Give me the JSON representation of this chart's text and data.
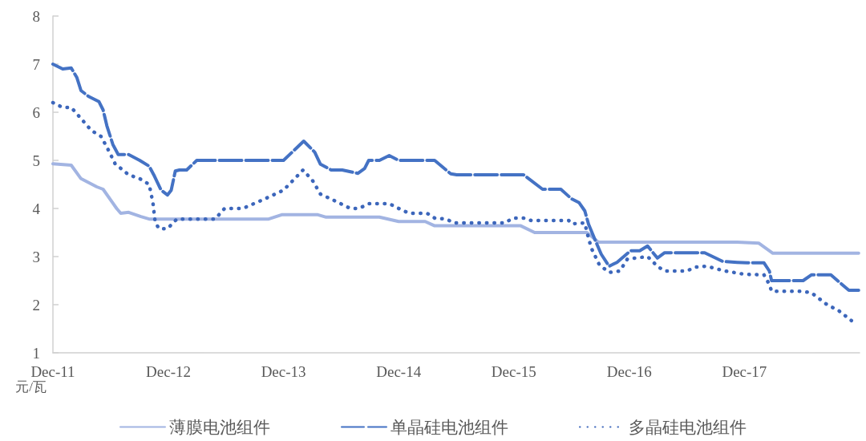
{
  "chart_data": {
    "type": "line",
    "ylabel": "元/瓦",
    "ylim": [
      1,
      8
    ],
    "yticks": [
      1,
      2,
      3,
      4,
      5,
      6,
      7,
      8
    ],
    "xlim": [
      "2011-12-01",
      "2018-12-01"
    ],
    "xticks": [
      {
        "value": "2011-12",
        "label": "Dec-11"
      },
      {
        "value": "2012-12",
        "label": "Dec-12"
      },
      {
        "value": "2013-12",
        "label": "Dec-13"
      },
      {
        "value": "2014-12",
        "label": "Dec-14"
      },
      {
        "value": "2015-12",
        "label": "Dec-15"
      },
      {
        "value": "2016-12",
        "label": "Dec-16"
      },
      {
        "value": "2017-12",
        "label": "Dec-17"
      }
    ],
    "grid": false,
    "legend": "bottom",
    "marker": "none",
    "series": [
      {
        "name": "薄膜电池组件",
        "color": "#a2b4e2",
        "line_style": "solid",
        "x": [
          "2011-12-01",
          "2012-01-28",
          "2012-02-28",
          "2012-04-18",
          "2012-05-08",
          "2012-06-20",
          "2012-07-03",
          "2012-07-28",
          "2012-09-05",
          "2012-10-01",
          "2013-10-15",
          "2013-11-25",
          "2014-03-20",
          "2014-04-15",
          "2014-10-01",
          "2014-12-01",
          "2015-02-23",
          "2015-03-25",
          "2015-12-23",
          "2016-02-05",
          "2016-07-20",
          "2016-08-25",
          "2017-11-08",
          "2018-01-15",
          "2018-03-01",
          "2018-11-28"
        ],
        "values": [
          4.93,
          4.9,
          4.62,
          4.45,
          4.4,
          4.0,
          3.9,
          3.92,
          3.83,
          3.78,
          3.78,
          3.87,
          3.87,
          3.82,
          3.82,
          3.73,
          3.73,
          3.64,
          3.64,
          3.5,
          3.5,
          3.3,
          3.3,
          3.28,
          3.07,
          3.07
        ]
      },
      {
        "name": "单晶硅电池组件",
        "color": "#4472c4",
        "line_style": "dashed",
        "x": [
          "2011-12-01",
          "2012-01-01",
          "2012-01-28",
          "2012-02-15",
          "2012-02-28",
          "2012-03-23",
          "2012-04-25",
          "2012-05-08",
          "2012-05-20",
          "2012-06-08",
          "2012-06-25",
          "2012-07-28",
          "2012-09-01",
          "2012-10-01",
          "2012-10-18",
          "2012-11-08",
          "2012-11-28",
          "2012-12-10",
          "2012-12-23",
          "2013-01-05",
          "2013-01-28",
          "2013-03-01",
          "2013-12-01",
          "2014-02-03",
          "2014-03-10",
          "2014-03-28",
          "2014-05-01",
          "2014-06-05",
          "2014-07-25",
          "2014-08-15",
          "2014-08-28",
          "2014-10-01",
          "2014-11-01",
          "2014-12-01",
          "2015-03-25",
          "2015-05-15",
          "2015-06-03",
          "2016-01-01",
          "2016-03-01",
          "2016-04-28",
          "2016-06-01",
          "2016-06-25",
          "2016-07-13",
          "2016-07-25",
          "2016-08-13",
          "2016-09-03",
          "2016-09-28",
          "2016-10-23",
          "2016-12-05",
          "2017-01-03",
          "2017-01-28",
          "2017-02-28",
          "2017-03-23",
          "2017-07-28",
          "2017-09-23",
          "2017-11-08",
          "2017-12-10",
          "2018-02-01",
          "2018-02-18",
          "2018-02-25",
          "2018-06-05",
          "2018-07-01",
          "2018-09-01",
          "2018-10-28",
          "2018-11-28"
        ],
        "values": [
          7.0,
          6.9,
          6.92,
          6.72,
          6.45,
          6.33,
          6.22,
          6.05,
          5.72,
          5.33,
          5.12,
          5.12,
          5.0,
          4.88,
          4.67,
          4.38,
          4.28,
          4.38,
          4.78,
          4.8,
          4.8,
          5.0,
          5.0,
          5.4,
          5.17,
          4.92,
          4.8,
          4.8,
          4.73,
          4.83,
          5.0,
          5.0,
          5.1,
          5.0,
          5.0,
          4.72,
          4.7,
          4.7,
          4.4,
          4.4,
          4.2,
          4.12,
          3.95,
          3.67,
          3.37,
          3.05,
          2.8,
          2.88,
          3.12,
          3.12,
          3.22,
          2.97,
          3.08,
          3.08,
          2.9,
          2.88,
          2.87,
          2.87,
          2.7,
          2.5,
          2.5,
          2.62,
          2.62,
          2.3,
          2.3
        ]
      },
      {
        "name": "多晶硅电池组件",
        "color": "#3c66bb",
        "line_style": "dotted",
        "x": [
          "2011-12-01",
          "2012-01-01",
          "2012-01-28",
          "2012-02-28",
          "2012-04-01",
          "2012-05-01",
          "2012-05-18",
          "2012-06-01",
          "2012-06-15",
          "2012-07-28",
          "2012-09-01",
          "2012-10-01",
          "2012-10-13",
          "2012-10-20",
          "2012-11-01",
          "2012-11-28",
          "2012-12-28",
          "2013-04-28",
          "2013-05-28",
          "2013-07-25",
          "2013-10-03",
          "2013-12-01",
          "2014-02-01",
          "2014-03-03",
          "2014-03-28",
          "2014-05-25",
          "2014-07-01",
          "2014-07-28",
          "2014-08-28",
          "2014-11-01",
          "2014-12-01",
          "2015-01-03",
          "2015-03-01",
          "2015-03-25",
          "2015-05-01",
          "2015-05-25",
          "2015-11-03",
          "2015-11-28",
          "2016-01-01",
          "2016-01-25",
          "2016-05-23",
          "2016-06-01",
          "2016-07-13",
          "2016-07-20",
          "2016-08-03",
          "2016-08-28",
          "2016-09-28",
          "2016-11-01",
          "2016-11-25",
          "2017-01-28",
          "2017-02-28",
          "2017-03-23",
          "2017-06-01",
          "2017-06-28",
          "2017-08-03",
          "2017-10-01",
          "2017-12-03",
          "2018-02-01",
          "2018-02-18",
          "2018-02-25",
          "2018-05-28",
          "2018-07-01",
          "2018-08-20",
          "2018-09-25",
          "2018-11-05"
        ],
        "values": [
          6.2,
          6.1,
          6.1,
          5.87,
          5.62,
          5.5,
          5.3,
          5.12,
          4.93,
          4.7,
          4.62,
          4.5,
          4.12,
          3.72,
          3.58,
          3.58,
          3.78,
          3.78,
          4.0,
          4.0,
          4.2,
          4.38,
          4.8,
          4.58,
          4.3,
          4.12,
          4.0,
          4.0,
          4.1,
          4.1,
          4.0,
          3.9,
          3.9,
          3.8,
          3.78,
          3.7,
          3.7,
          3.8,
          3.8,
          3.75,
          3.75,
          3.68,
          3.7,
          3.5,
          3.17,
          2.83,
          2.67,
          2.7,
          2.95,
          3.0,
          2.8,
          2.7,
          2.7,
          2.78,
          2.8,
          2.7,
          2.63,
          2.62,
          2.42,
          2.28,
          2.28,
          2.25,
          2.0,
          1.88,
          1.67
        ]
      }
    ]
  }
}
